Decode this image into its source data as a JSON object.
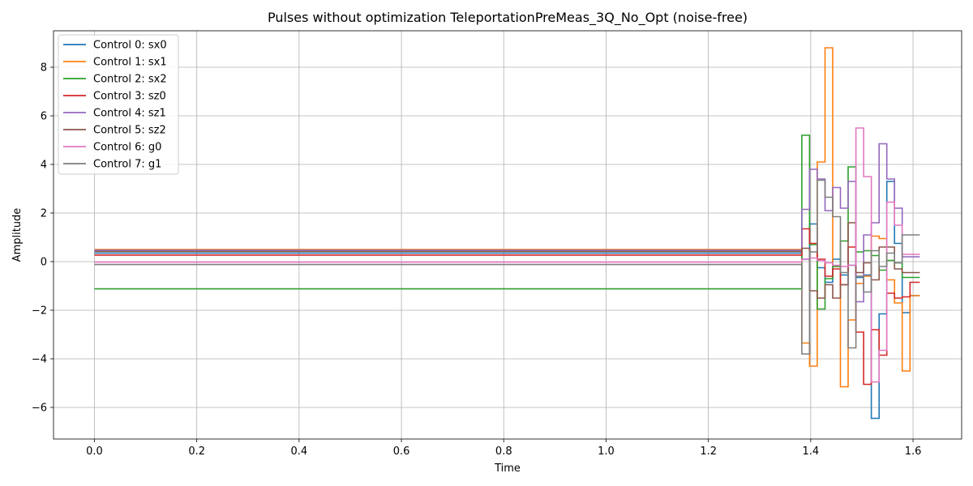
{
  "chart_data": {
    "type": "line",
    "step": "post",
    "title": "Pulses without optimization TeleportationPreMeas_3Q_No_Opt (noise-free)",
    "xlabel": "Time",
    "ylabel": "Amplitude",
    "xlim": [
      -0.08,
      1.695
    ],
    "ylim": [
      -7.3,
      9.5
    ],
    "xticks": [
      0.0,
      0.2,
      0.4,
      0.6,
      0.8,
      1.0,
      1.2,
      1.4,
      1.6
    ],
    "xtick_labels": [
      "0.0",
      "0.2",
      "0.4",
      "0.6",
      "0.8",
      "1.0",
      "1.2",
      "1.4",
      "1.6"
    ],
    "yticks": [
      -6,
      -4,
      -2,
      0,
      2,
      4,
      6,
      8
    ],
    "ytick_labels": [
      "−6",
      "−4",
      "−2",
      "0",
      "2",
      "4",
      "6",
      "8"
    ],
    "grid": true,
    "legend_position": "top-left",
    "x": [
      0.0,
      1.3826,
      1.3977,
      1.4128,
      1.4279,
      1.443,
      1.4581,
      1.4732,
      1.4883,
      1.5034,
      1.5185,
      1.5336,
      1.5487,
      1.5638,
      1.5789,
      1.594,
      1.6091
    ],
    "series": [
      {
        "name": "Control 0: sx0",
        "color": "#1f77b4",
        "values": [
          0.35,
          0.1,
          1.55,
          -0.25,
          -0.85,
          0.1,
          -0.55,
          -0.15,
          -0.65,
          -0.55,
          -6.45,
          -2.15,
          3.3,
          0.75,
          -2.1,
          -1.4,
          -1.4
        ]
      },
      {
        "name": "Control 1: sx1",
        "color": "#ff7f0e",
        "values": [
          0.5,
          -3.35,
          -4.3,
          4.1,
          8.8,
          -0.2,
          -5.15,
          -2.4,
          -0.9,
          -0.6,
          1.05,
          0.95,
          -0.75,
          -1.7,
          -4.5,
          -1.4,
          -1.4
        ]
      },
      {
        "name": "Control 2: sx2",
        "color": "#2ca02c",
        "values": [
          -1.12,
          5.2,
          0.7,
          -1.95,
          -0.7,
          -0.2,
          0.85,
          3.9,
          0.4,
          0.45,
          0.25,
          -0.35,
          0.05,
          -0.05,
          -0.65,
          -0.65,
          -0.65
        ]
      },
      {
        "name": "Control 3: sz0",
        "color": "#d62728",
        "values": [
          0.27,
          1.35,
          0.75,
          0.1,
          -0.6,
          -0.3,
          -0.95,
          0.6,
          -2.9,
          -5.05,
          -2.8,
          -3.85,
          -1.3,
          -1.5,
          -1.45,
          -0.85,
          -0.85
        ]
      },
      {
        "name": "Control 4: sz1",
        "color": "#9467bd",
        "values": [
          0.47,
          2.15,
          3.8,
          3.4,
          2.1,
          3.05,
          2.2,
          3.3,
          -1.65,
          1.1,
          1.6,
          4.85,
          3.4,
          2.2,
          0.2,
          0.2,
          0.2
        ]
      },
      {
        "name": "Control 5: sz2",
        "color": "#8c564b",
        "values": [
          0.42,
          0.55,
          -1.2,
          -1.5,
          -0.95,
          -1.5,
          -0.95,
          1.6,
          -0.45,
          -0.05,
          -0.75,
          0.6,
          0.6,
          -0.3,
          -0.45,
          -0.45,
          -0.45
        ]
      },
      {
        "name": "Control 6: g0",
        "color": "#e377c2",
        "values": [
          -0.02,
          0.1,
          0.15,
          0.05,
          -0.05,
          -0.15,
          -0.2,
          -0.15,
          5.5,
          3.5,
          -4.95,
          -3.65,
          2.45,
          1.5,
          0.3,
          0.3,
          0.3
        ]
      },
      {
        "name": "Control 7: g1",
        "color": "#7f7f7f",
        "values": [
          -0.12,
          -3.8,
          0.4,
          3.35,
          2.65,
          1.85,
          -0.45,
          -3.55,
          -0.6,
          -1.25,
          0.45,
          -0.2,
          0.35,
          -0.05,
          1.1,
          1.1,
          1.1
        ]
      }
    ],
    "x_end": 1.6132
  }
}
